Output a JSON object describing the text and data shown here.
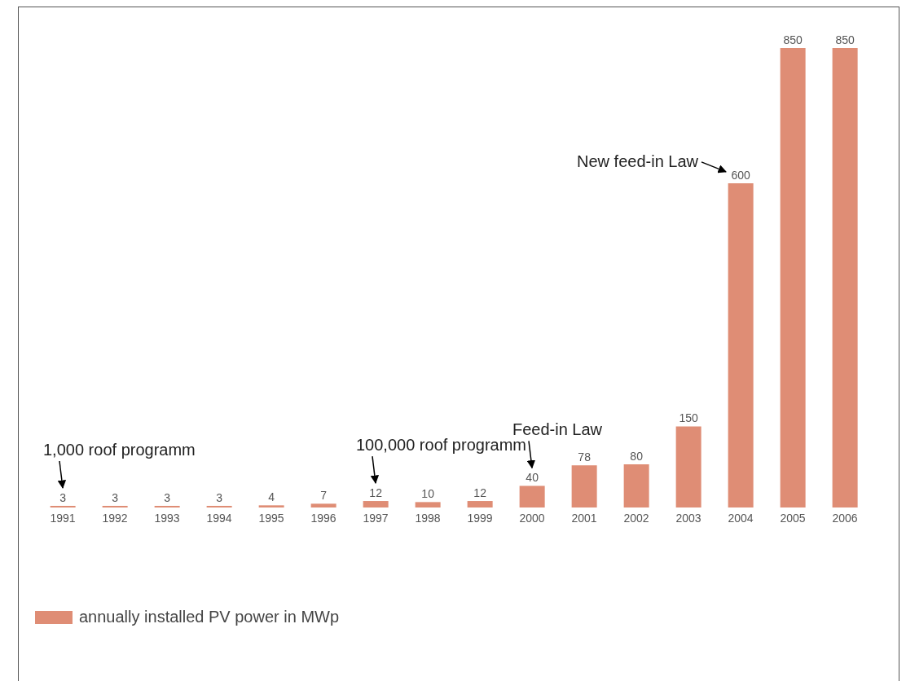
{
  "chart_data": {
    "type": "bar",
    "categories": [
      "1991",
      "1992",
      "1993",
      "1994",
      "1995",
      "1996",
      "1997",
      "1998",
      "1999",
      "2000",
      "2001",
      "2002",
      "2003",
      "2004",
      "2005",
      "2006"
    ],
    "series": [
      {
        "name": "annually installed PV power in MWp",
        "color": "#df8d75",
        "values": [
          3,
          3,
          3,
          3,
          4,
          7,
          12,
          10,
          12,
          40,
          78,
          80,
          150,
          600,
          850,
          850
        ]
      }
    ],
    "data_labels": true,
    "legend": "bottom left",
    "grid": false,
    "annotations": [
      {
        "text": "1,000 roof programm",
        "x": "1991",
        "y": 3
      },
      {
        "text": "100,000 roof programm",
        "x": "1997",
        "y": 12
      },
      {
        "text": "Feed-in Law",
        "x": "2000",
        "y": 40
      },
      {
        "text": "New feed-in Law",
        "x": "2004",
        "y": 600
      }
    ]
  }
}
